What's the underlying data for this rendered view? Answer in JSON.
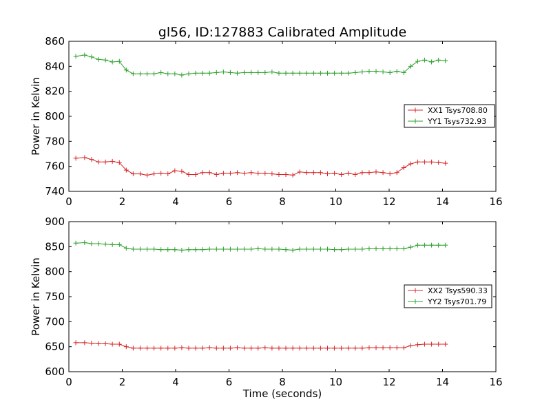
{
  "title": "gl56, ID:127883 Calibrated Amplitude",
  "chart_data": [
    {
      "type": "line",
      "title": "gl56, ID:127883 Calibrated Amplitude",
      "xlabel": "",
      "ylabel": "Power in Kelvin",
      "xlim": [
        0,
        16
      ],
      "ylim": [
        740,
        860
      ],
      "xticks": [
        0,
        2,
        4,
        6,
        8,
        10,
        12,
        14,
        16
      ],
      "yticks": [
        740,
        760,
        780,
        800,
        820,
        840,
        860
      ],
      "grid": false,
      "legend_position": "right",
      "x": [
        0.26,
        0.59,
        0.85,
        1.11,
        1.37,
        1.63,
        1.89,
        2.15,
        2.41,
        2.67,
        2.93,
        3.19,
        3.45,
        3.71,
        3.97,
        4.23,
        4.49,
        4.75,
        5.01,
        5.27,
        5.53,
        5.79,
        6.05,
        6.31,
        6.57,
        6.83,
        7.09,
        7.35,
        7.61,
        7.87,
        8.13,
        8.39,
        8.65,
        8.91,
        9.17,
        9.43,
        9.69,
        9.95,
        10.21,
        10.47,
        10.73,
        10.99,
        11.25,
        11.51,
        11.77,
        12.03,
        12.29,
        12.55,
        12.81,
        13.07,
        13.33,
        13.59,
        13.85,
        14.11
      ],
      "series": [
        {
          "name": "XX1 Tsys708.80",
          "color": "#d62728",
          "values": [
            766.5,
            767,
            765.5,
            763.5,
            763.5,
            764,
            763,
            757,
            754,
            754,
            753,
            754,
            754.5,
            754,
            756.5,
            756,
            753.5,
            753.5,
            755,
            755,
            753.5,
            754.5,
            754.5,
            755,
            754.5,
            755,
            754.5,
            754.5,
            754,
            753.5,
            753.5,
            753,
            755.5,
            755,
            755,
            755,
            754,
            754.5,
            753.5,
            754.5,
            753.5,
            755,
            755,
            755.5,
            755,
            754,
            755,
            759,
            762,
            763.5,
            763.5,
            763.5,
            763,
            762.5
          ]
        },
        {
          "name": "YY1 Tsys732.93",
          "color": "#2ca02c",
          "values": [
            848,
            849,
            847.5,
            845.5,
            845,
            843.5,
            844,
            837,
            834,
            834,
            834,
            834,
            835,
            834,
            834,
            833,
            834,
            834.5,
            834.5,
            834.5,
            835,
            835.5,
            835,
            834.5,
            835,
            835,
            835,
            835,
            835.5,
            834.5,
            834.5,
            834.5,
            834.5,
            834.5,
            834.5,
            834.5,
            834.5,
            834.5,
            834.5,
            834.5,
            835,
            835.5,
            836,
            836,
            835.5,
            835,
            836,
            835,
            840,
            844,
            845,
            843.5,
            845,
            844.5
          ]
        }
      ]
    },
    {
      "type": "line",
      "title": "",
      "xlabel": "Time (seconds)",
      "ylabel": "Power in Kelvin",
      "xlim": [
        0,
        16
      ],
      "ylim": [
        600,
        900
      ],
      "xticks": [
        0,
        2,
        4,
        6,
        8,
        10,
        12,
        14,
        16
      ],
      "yticks": [
        600,
        650,
        700,
        750,
        800,
        850,
        900
      ],
      "grid": false,
      "legend_position": "right",
      "x": [
        0.26,
        0.59,
        0.85,
        1.11,
        1.37,
        1.63,
        1.89,
        2.15,
        2.41,
        2.67,
        2.93,
        3.19,
        3.45,
        3.71,
        3.97,
        4.23,
        4.49,
        4.75,
        5.01,
        5.27,
        5.53,
        5.79,
        6.05,
        6.31,
        6.57,
        6.83,
        7.09,
        7.35,
        7.61,
        7.87,
        8.13,
        8.39,
        8.65,
        8.91,
        9.17,
        9.43,
        9.69,
        9.95,
        10.21,
        10.47,
        10.73,
        10.99,
        11.25,
        11.51,
        11.77,
        12.03,
        12.29,
        12.55,
        12.81,
        13.07,
        13.33,
        13.59,
        13.85,
        14.11
      ],
      "series": [
        {
          "name": "XX2 Tsys590.33",
          "color": "#d62728",
          "values": [
            658,
            658,
            657,
            656,
            656,
            655,
            655,
            650,
            647,
            647,
            647,
            647,
            647,
            647,
            647,
            648,
            647,
            647,
            647,
            648,
            647,
            647,
            647,
            648,
            647,
            647,
            647,
            648,
            647,
            647,
            647,
            647,
            647,
            647,
            647,
            647,
            647,
            647,
            647,
            647,
            647,
            647,
            648,
            648,
            648,
            648,
            648,
            648,
            652,
            654,
            655,
            655,
            655,
            655
          ]
        },
        {
          "name": "YY2 Tsys701.79",
          "color": "#2ca02c",
          "values": [
            857,
            858,
            856,
            856,
            855,
            854,
            854,
            847,
            845,
            845,
            845,
            845,
            844,
            844,
            844,
            843,
            844,
            844,
            844,
            845,
            845,
            845,
            845,
            845,
            845,
            845,
            846,
            845,
            845,
            845,
            844,
            843,
            845,
            845,
            845,
            845,
            845,
            844,
            844,
            845,
            845,
            845,
            846,
            846,
            846,
            846,
            846,
            846,
            849,
            853,
            853,
            853,
            853,
            853
          ]
        }
      ]
    }
  ]
}
